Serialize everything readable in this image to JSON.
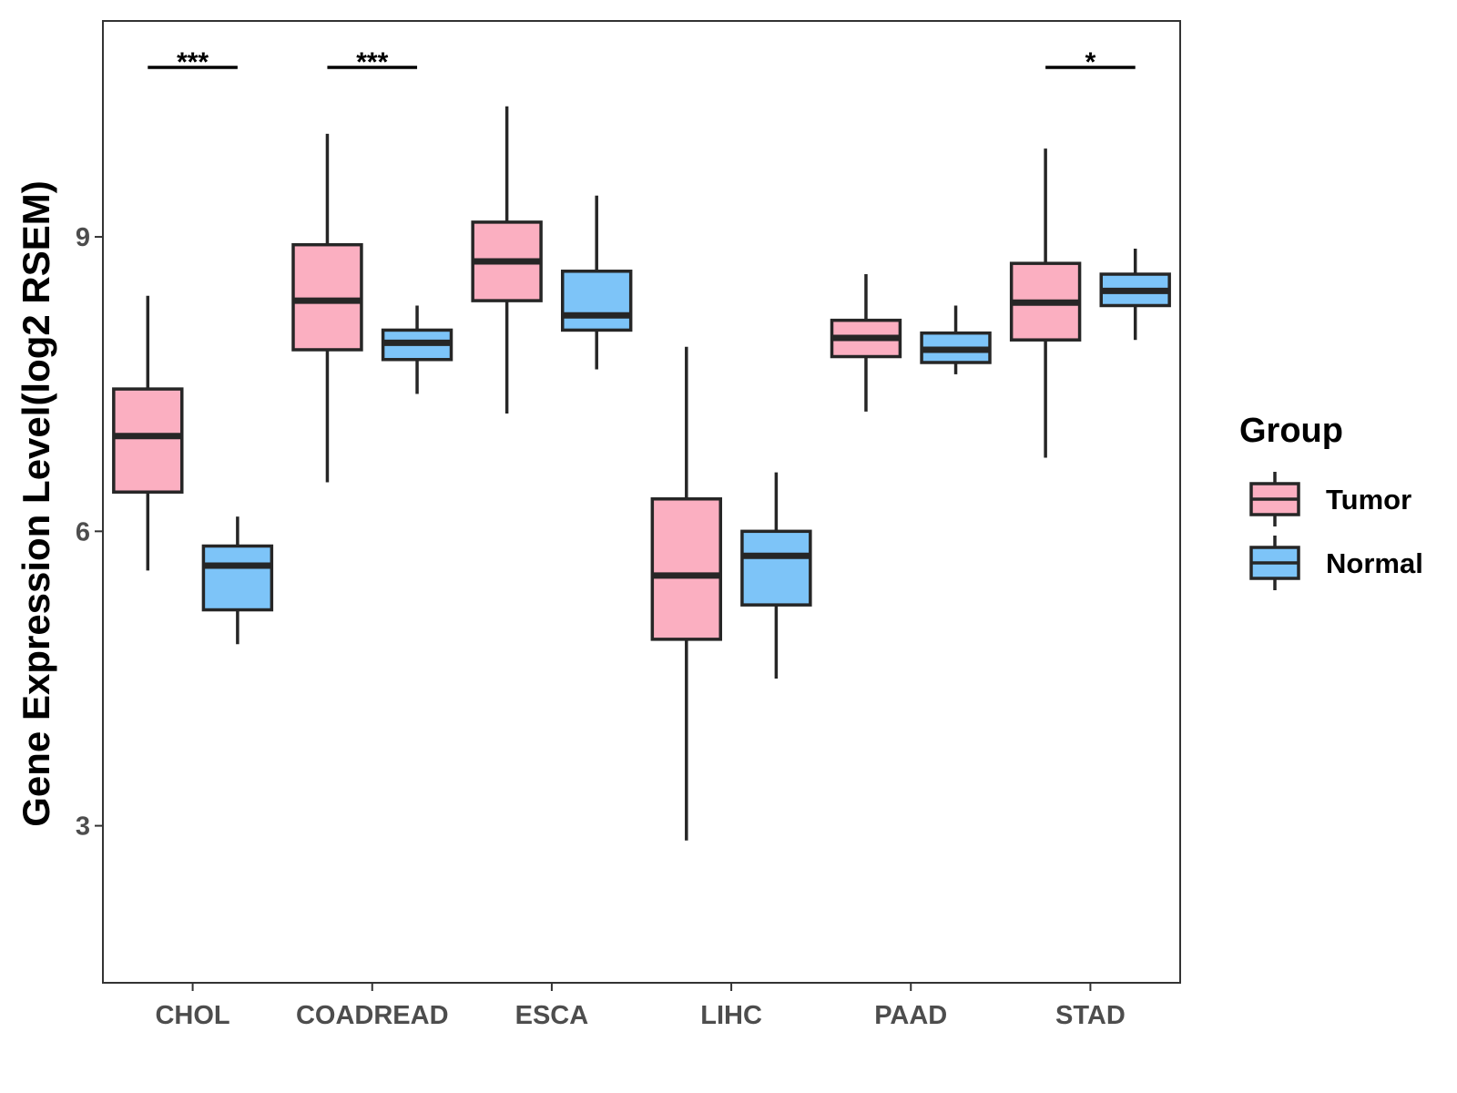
{
  "chart_data": {
    "type": "boxplot",
    "title": "",
    "xlabel": "",
    "ylabel": "Gene Expression Level(log2 RSEM)",
    "ylim": [
      1.4,
      11.2
    ],
    "yticks": [
      3,
      6,
      9
    ],
    "categories": [
      "CHOL",
      "COADREAD",
      "ESCA",
      "LIHC",
      "PAAD",
      "STAD"
    ],
    "legend": {
      "title": "Group",
      "position": "right",
      "entries": [
        {
          "name": "Tumor",
          "color": "#FBAFC1"
        },
        {
          "name": "Normal",
          "color": "#7DC4F8"
        }
      ]
    },
    "series": [
      {
        "name": "Tumor",
        "color": "#FBAFC1",
        "boxes": [
          {
            "min": 5.6,
            "q1": 6.4,
            "median": 6.97,
            "q3": 7.45,
            "max": 8.4
          },
          {
            "min": 6.5,
            "q1": 7.85,
            "median": 8.35,
            "q3": 8.92,
            "max": 10.05
          },
          {
            "min": 7.2,
            "q1": 8.35,
            "median": 8.75,
            "q3": 9.15,
            "max": 10.33
          },
          {
            "min": 2.85,
            "q1": 4.9,
            "median": 5.55,
            "q3": 6.33,
            "max": 7.88
          },
          {
            "min": 7.22,
            "q1": 7.78,
            "median": 7.97,
            "q3": 8.15,
            "max": 8.62
          },
          {
            "min": 6.75,
            "q1": 7.95,
            "median": 8.33,
            "q3": 8.73,
            "max": 9.9
          }
        ]
      },
      {
        "name": "Normal",
        "color": "#7DC4F8",
        "boxes": [
          {
            "min": 4.85,
            "q1": 5.2,
            "median": 5.65,
            "q3": 5.85,
            "max": 6.15
          },
          {
            "min": 7.4,
            "q1": 7.75,
            "median": 7.92,
            "q3": 8.05,
            "max": 8.3
          },
          {
            "min": 7.65,
            "q1": 8.05,
            "median": 8.2,
            "q3": 8.65,
            "max": 9.42
          },
          {
            "min": 4.5,
            "q1": 5.25,
            "median": 5.75,
            "q3": 6.0,
            "max": 6.6
          },
          {
            "min": 7.6,
            "q1": 7.72,
            "median": 7.85,
            "q3": 8.02,
            "max": 8.3
          },
          {
            "min": 7.95,
            "q1": 8.3,
            "median": 8.45,
            "q3": 8.62,
            "max": 8.88
          }
        ]
      }
    ],
    "significance": [
      {
        "category": "CHOL",
        "label": "***"
      },
      {
        "category": "COADREAD",
        "label": "***"
      },
      {
        "category": "STAD",
        "label": "*"
      }
    ]
  }
}
